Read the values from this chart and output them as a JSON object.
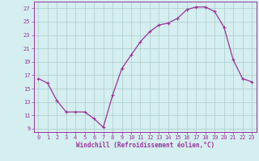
{
  "x": [
    0,
    1,
    2,
    3,
    4,
    5,
    6,
    7,
    8,
    9,
    10,
    11,
    12,
    13,
    14,
    15,
    16,
    17,
    18,
    19,
    20,
    21,
    22,
    23
  ],
  "y": [
    16.5,
    15.8,
    13.2,
    11.5,
    11.5,
    11.5,
    10.5,
    9.2,
    14.0,
    18.0,
    20.0,
    22.0,
    23.5,
    24.5,
    24.8,
    25.5,
    26.8,
    27.2,
    27.2,
    26.5,
    24.2,
    19.3,
    16.5,
    16.0
  ],
  "line_color": "#993399",
  "marker": "+",
  "marker_size": 3,
  "marker_linewidth": 0.8,
  "bg_color": "#d5eef0",
  "grid_color": "#aacccc",
  "xlabel": "Windchill (Refroidissement éolien,°C)",
  "ylabel_ticks": [
    9,
    11,
    13,
    15,
    17,
    19,
    21,
    23,
    25,
    27
  ],
  "xlim": [
    -0.5,
    23.5
  ],
  "ylim": [
    8.5,
    28.0
  ],
  "xtick_labels": [
    "0",
    "1",
    "2",
    "3",
    "4",
    "5",
    "6",
    "7",
    "8",
    "9",
    "10",
    "11",
    "12",
    "13",
    "14",
    "15",
    "16",
    "17",
    "18",
    "19",
    "20",
    "21",
    "22",
    "23"
  ],
  "tick_fontsize": 5.0,
  "xlabel_fontsize": 5.5,
  "tick_color": "#993399",
  "axis_color": "#993399",
  "label_color": "#993399",
  "linewidth": 0.9
}
